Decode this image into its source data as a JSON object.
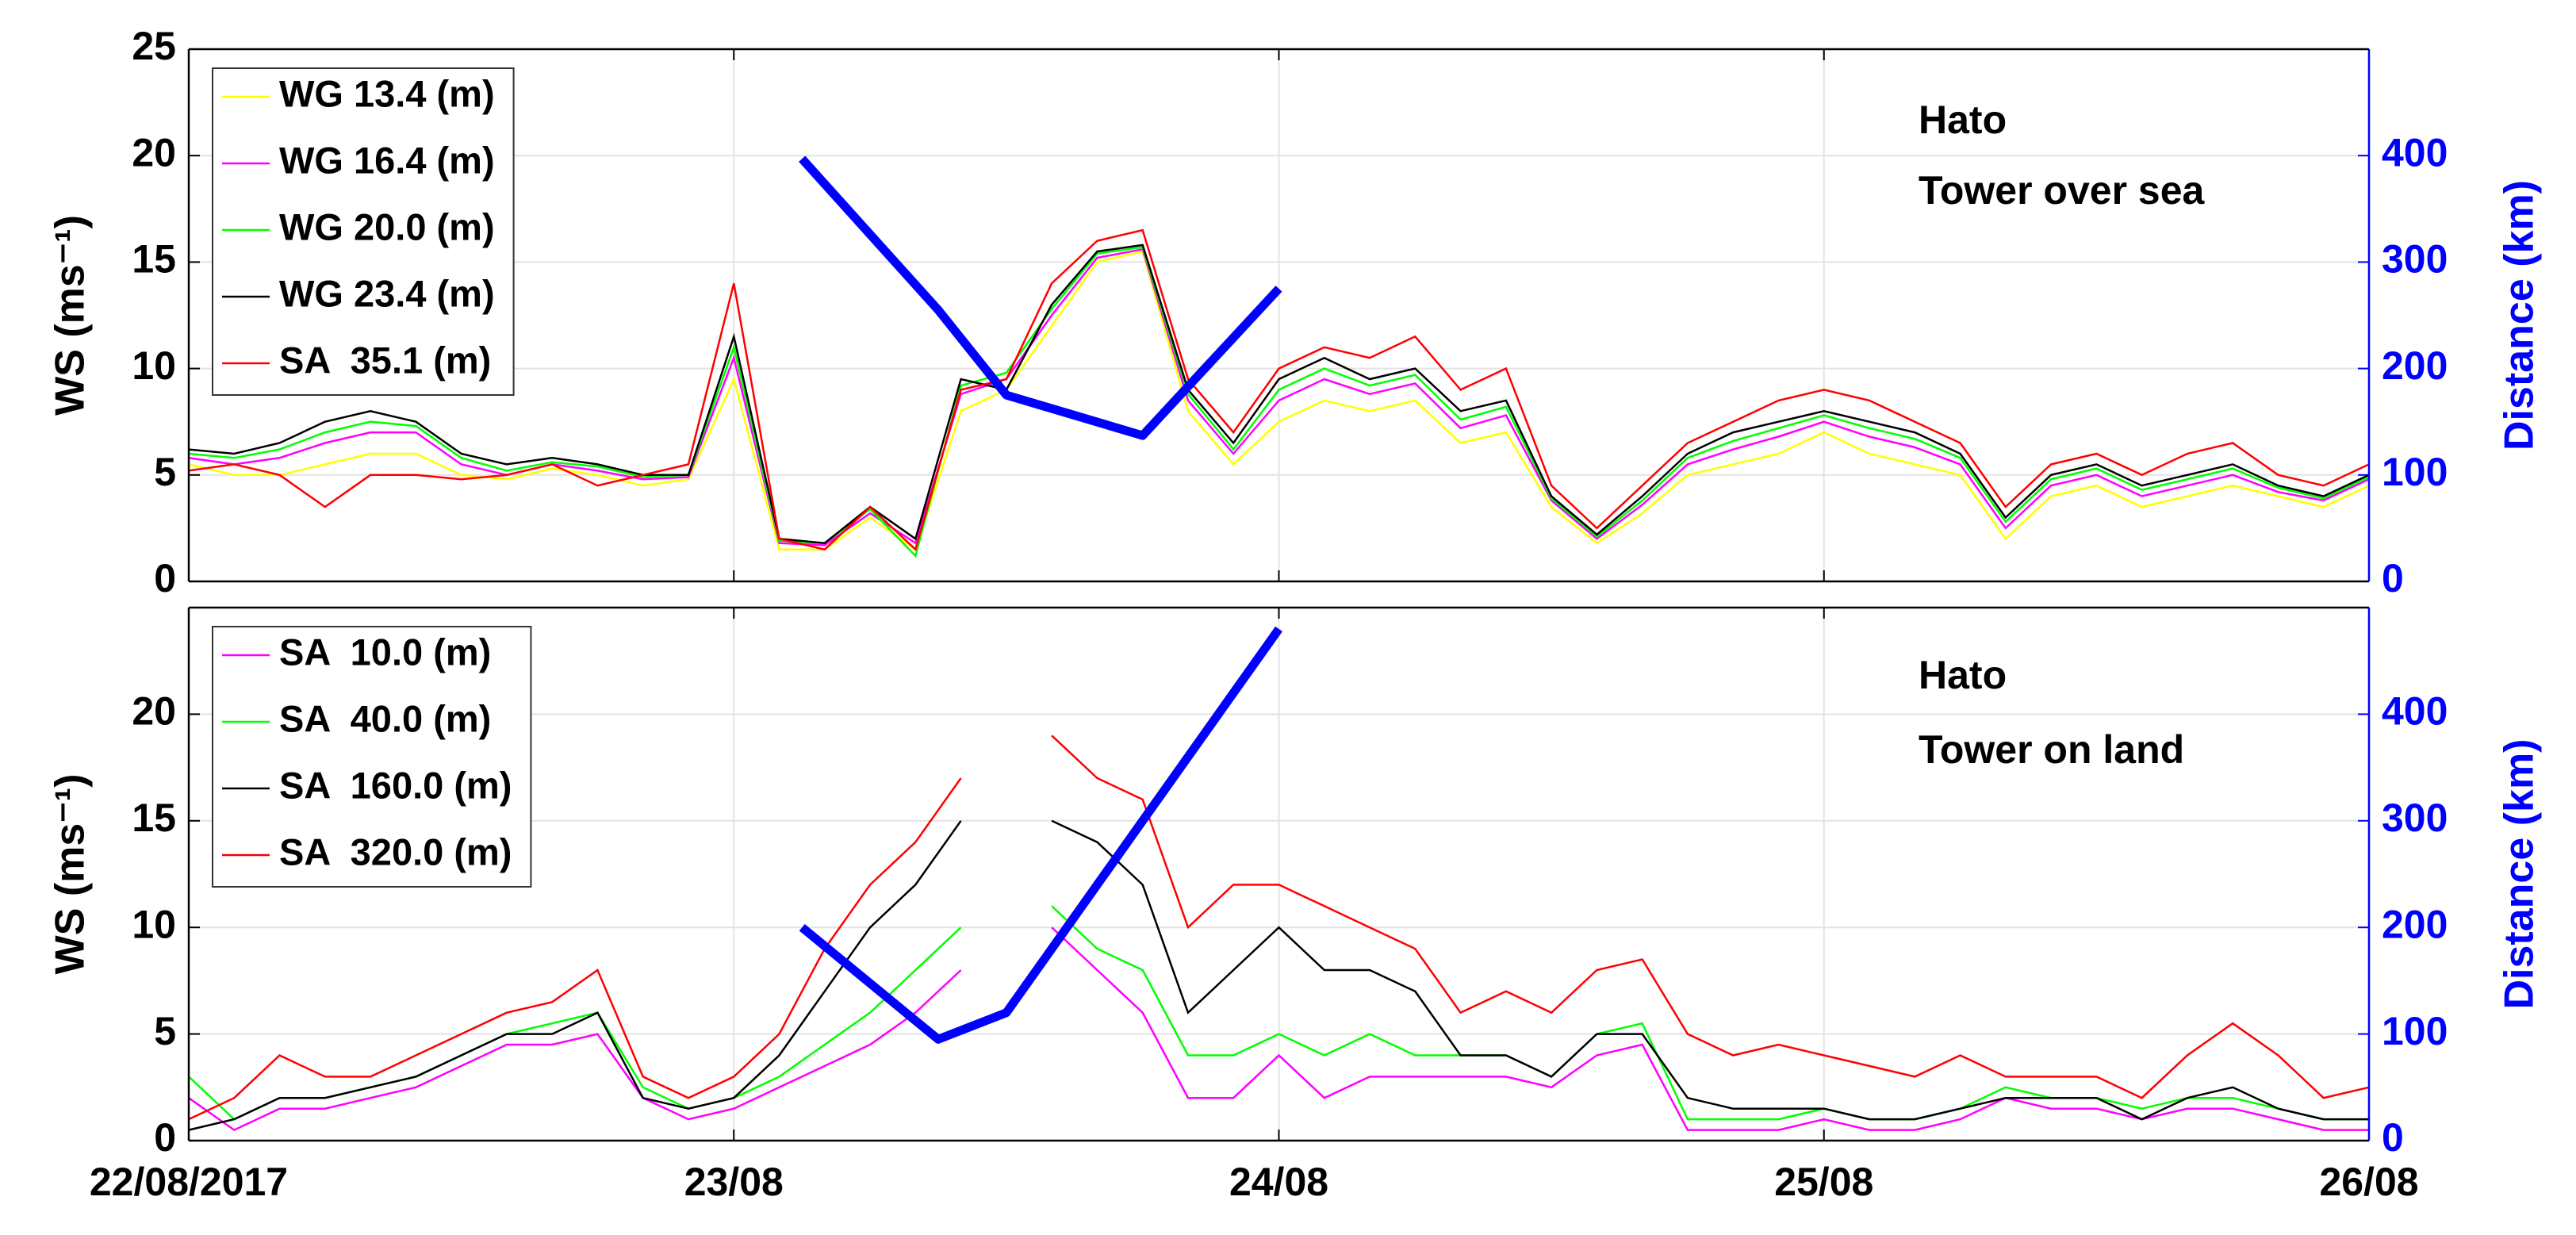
{
  "chart_data": [
    {
      "type": "line",
      "ylabel": "WS (ms⁻¹)",
      "y2label": "Distance (km)",
      "annotations": [
        "Hato",
        "Tower over sea"
      ],
      "x": [
        0,
        2,
        4,
        6,
        8,
        10,
        12,
        14,
        16,
        18,
        20,
        22,
        24,
        26,
        28,
        30,
        32,
        34,
        36,
        38,
        40,
        42,
        44,
        46,
        48,
        50,
        52,
        54,
        56,
        58,
        60,
        62,
        64,
        66,
        68,
        70,
        72,
        74,
        76,
        78,
        80,
        82,
        84,
        86,
        88,
        90,
        92,
        94,
        96
      ],
      "xlim": [
        0,
        96
      ],
      "xticks": [
        0,
        24,
        48,
        72,
        96
      ],
      "ylim": [
        0,
        25
      ],
      "yticks": [
        0,
        5,
        10,
        15,
        20,
        25
      ],
      "y2lim": [
        0,
        500
      ],
      "y2ticks": [
        0,
        100,
        200,
        300,
        400
      ],
      "grid": true,
      "legend": "upper left",
      "series": [
        {
          "name": "WG 13.4 (m)",
          "color": "#ffff00",
          "values": [
            5.5,
            5,
            5,
            5.5,
            6,
            6,
            5,
            4.8,
            5.3,
            5,
            4.5,
            4.8,
            9.5,
            1.5,
            1.5,
            3,
            1.5,
            8,
            9,
            12,
            15,
            15.5,
            8,
            5.5,
            7.5,
            8.5,
            8,
            8.5,
            6.5,
            7,
            3.5,
            1.8,
            3.2,
            5,
            5.5,
            6,
            7,
            6,
            5.5,
            5,
            2,
            4,
            4.5,
            3.5,
            4,
            4.5,
            4,
            3.5,
            4.5
          ]
        },
        {
          "name": "WG 16.4 (m)",
          "color": "#ff00ff",
          "values": [
            5.8,
            5.5,
            5.8,
            6.5,
            7,
            7,
            5.5,
            5,
            5.5,
            5.2,
            4.8,
            4.9,
            10.5,
            1.8,
            1.7,
            3.2,
            1.8,
            8.8,
            9.5,
            12.5,
            15.2,
            15.6,
            8.5,
            6,
            8.5,
            9.5,
            8.8,
            9.3,
            7.2,
            7.8,
            3.8,
            2,
            3.6,
            5.5,
            6.2,
            6.8,
            7.5,
            6.8,
            6.3,
            5.5,
            2.5,
            4.5,
            5,
            4,
            4.5,
            5,
            4.2,
            3.8,
            4.8
          ]
        },
        {
          "name": "WG 20.0 (m)",
          "color": "#00ff00",
          "values": [
            6,
            5.8,
            6.2,
            7,
            7.5,
            7.3,
            5.8,
            5.2,
            5.6,
            5.4,
            4.9,
            5,
            11,
            1.9,
            1.8,
            3.4,
            1.2,
            9.2,
            9.8,
            12.8,
            15.4,
            15.7,
            8.8,
            6.2,
            9,
            10,
            9.2,
            9.7,
            7.6,
            8.2,
            3.9,
            2.1,
            3.8,
            5.8,
            6.6,
            7.2,
            7.8,
            7.2,
            6.7,
            5.8,
            2.8,
            4.8,
            5.3,
            4.3,
            4.8,
            5.3,
            4.4,
            3.9,
            4.9
          ]
        },
        {
          "name": "WG 23.4 (m)",
          "color": "#000000",
          "values": [
            6.2,
            6,
            6.5,
            7.5,
            8,
            7.5,
            6,
            5.5,
            5.8,
            5.5,
            5,
            5,
            11.5,
            2,
            1.8,
            3.5,
            2,
            9.5,
            9,
            13,
            15.5,
            15.8,
            9,
            6.5,
            9.5,
            10.5,
            9.5,
            10,
            8,
            8.5,
            4,
            2.2,
            4,
            6,
            7,
            7.5,
            8,
            7.5,
            7,
            6,
            3,
            5,
            5.5,
            4.5,
            5,
            5.5,
            4.5,
            4,
            5
          ]
        },
        {
          "name": "SA  35.1 (m)",
          "color": "#ff0000",
          "values": [
            5.2,
            5.5,
            5,
            3.5,
            5,
            5,
            4.8,
            5,
            5.5,
            4.5,
            5,
            5.5,
            14,
            2,
            1.5,
            3.5,
            1.5,
            9,
            9.5,
            14,
            16,
            16.5,
            9.5,
            7,
            10,
            11,
            10.5,
            11.5,
            9,
            10,
            4.5,
            2.5,
            4.5,
            6.5,
            7.5,
            8.5,
            9,
            8.5,
            7.5,
            6.5,
            3.5,
            5.5,
            6,
            5,
            6,
            6.5,
            5,
            4.5,
            5.5
          ]
        }
      ],
      "distance": {
        "color": "#0000ff",
        "axis": "y2",
        "x": [
          27,
          33,
          36,
          42,
          48
        ],
        "values": [
          397,
          255,
          175,
          137,
          275
        ]
      }
    },
    {
      "type": "line",
      "ylabel": "WS (ms⁻¹)",
      "y2label": "Distance (km)",
      "annotations": [
        "Hato",
        "Tower on land"
      ],
      "x": [
        0,
        2,
        4,
        6,
        8,
        10,
        12,
        14,
        16,
        18,
        20,
        22,
        24,
        26,
        28,
        30,
        32,
        34,
        36,
        38,
        40,
        42,
        44,
        46,
        48,
        50,
        52,
        54,
        56,
        58,
        60,
        62,
        64,
        66,
        68,
        70,
        72,
        74,
        76,
        78,
        80,
        82,
        84,
        86,
        88,
        90,
        92,
        94,
        96
      ],
      "xlim": [
        0,
        96
      ],
      "xticks": [
        {
          "value": 0,
          "label": "22/08/2017"
        },
        {
          "value": 24,
          "label": "23/08"
        },
        {
          "value": 48,
          "label": "24/08"
        },
        {
          "value": 72,
          "label": "25/08"
        },
        {
          "value": 96,
          "label": "26/08"
        }
      ],
      "ylim": [
        0,
        25
      ],
      "yticks": [
        0,
        5,
        10,
        15,
        20
      ],
      "y2lim": [
        0,
        500
      ],
      "y2ticks": [
        0,
        100,
        200,
        300,
        400
      ],
      "grid": true,
      "legend": "upper left",
      "series": [
        {
          "name": "SA  10.0 (m)",
          "color": "#ff00ff",
          "values": [
            2,
            0.5,
            1.5,
            1.5,
            2,
            2.5,
            3.5,
            4.5,
            4.5,
            5,
            2,
            1,
            1.5,
            2.5,
            3.5,
            4.5,
            6,
            8,
            null,
            10,
            8,
            6,
            2,
            2,
            4,
            2,
            3,
            3,
            3,
            3,
            2.5,
            4,
            4.5,
            0.5,
            0.5,
            0.5,
            1,
            0.5,
            0.5,
            1,
            2,
            1.5,
            1.5,
            1,
            1.5,
            1.5,
            1,
            0.5,
            0.5
          ]
        },
        {
          "name": "SA  40.0 (m)",
          "color": "#00ff00",
          "values": [
            3,
            1,
            2,
            2,
            2.5,
            3,
            4,
            5,
            5.5,
            6,
            2.5,
            1.5,
            2,
            3,
            4.5,
            6,
            8,
            10,
            null,
            11,
            9,
            8,
            4,
            4,
            5,
            4,
            5,
            4,
            4,
            4,
            3,
            5,
            5.5,
            1,
            1,
            1,
            1.5,
            1,
            1,
            1.5,
            2.5,
            2,
            2,
            1.5,
            2,
            2,
            1.5,
            1,
            1
          ]
        },
        {
          "name": "SA  160.0 (m)",
          "color": "#000000",
          "values": [
            0.5,
            1,
            2,
            2,
            2.5,
            3,
            4,
            5,
            5,
            6,
            2,
            1.5,
            2,
            4,
            7,
            10,
            12,
            15,
            null,
            15,
            14,
            12,
            6,
            8,
            10,
            8,
            8,
            7,
            4,
            4,
            3,
            5,
            5,
            2,
            1.5,
            1.5,
            1.5,
            1,
            1,
            1.5,
            2,
            2,
            2,
            1,
            2,
            2.5,
            1.5,
            1,
            1
          ]
        },
        {
          "name": "SA  320.0 (m)",
          "color": "#ff0000",
          "values": [
            1,
            2,
            4,
            3,
            3,
            4,
            5,
            6,
            6.5,
            8,
            3,
            2,
            3,
            5,
            9,
            12,
            14,
            17,
            null,
            19,
            17,
            16,
            10,
            12,
            12,
            11,
            10,
            9,
            6,
            7,
            6,
            8,
            8.5,
            5,
            4,
            4.5,
            4,
            3.5,
            3,
            4,
            3,
            3,
            3,
            2,
            4,
            5.5,
            4,
            2,
            2.5
          ]
        }
      ],
      "distance": {
        "color": "#0000ff",
        "axis": "y2",
        "x": [
          27,
          33,
          36,
          48
        ],
        "values": [
          200,
          95,
          120,
          480
        ]
      }
    }
  ]
}
